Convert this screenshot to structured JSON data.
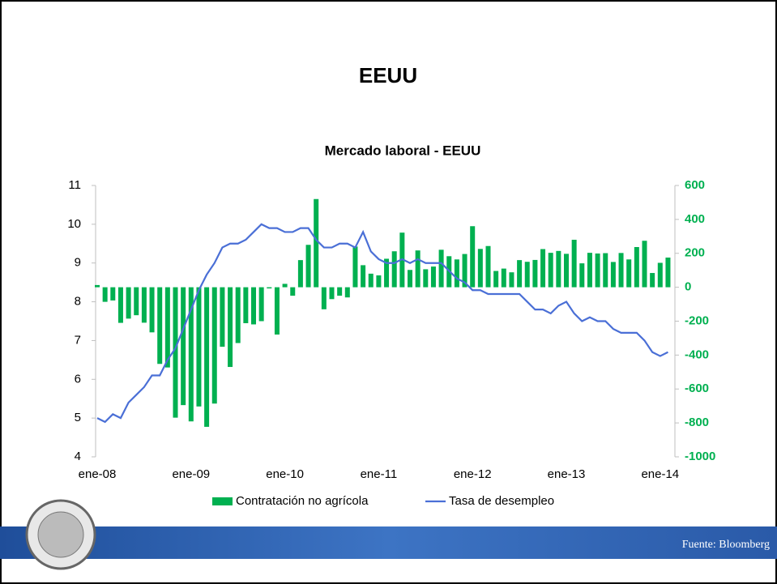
{
  "slide_title": "EEUU",
  "footer": "Fuente: Bloomberg",
  "chart_data": {
    "type": "bar-line",
    "title": "Mercado laboral - EEUU",
    "categories": [
      "ene-08",
      null,
      null,
      null,
      null,
      null,
      null,
      null,
      null,
      null,
      null,
      null,
      "ene-09",
      null,
      null,
      null,
      null,
      null,
      null,
      null,
      null,
      null,
      null,
      null,
      "ene-10",
      null,
      null,
      null,
      null,
      null,
      null,
      null,
      null,
      null,
      null,
      null,
      "ene-11",
      null,
      null,
      null,
      null,
      null,
      null,
      null,
      null,
      null,
      null,
      null,
      "ene-12",
      null,
      null,
      null,
      null,
      null,
      null,
      null,
      null,
      null,
      null,
      null,
      "ene-13",
      null,
      null,
      null,
      null,
      null,
      null,
      null,
      null,
      null,
      null,
      null,
      "ene-14",
      null
    ],
    "series": [
      {
        "name": "Contratación no agrícola",
        "color": "#00b050",
        "axis": "y2",
        "values": [
          13,
          -86,
          -78,
          -210,
          -185,
          -165,
          -209,
          -266,
          -452,
          -473,
          -769,
          -695,
          -791,
          -703,
          -823,
          -686,
          -351,
          -470,
          -329,
          -212,
          -219,
          -200,
          -7,
          -279,
          20,
          -50,
          160,
          250,
          520,
          -130,
          -70,
          -50,
          -60,
          240,
          130,
          80,
          70,
          168,
          212,
          322,
          102,
          217,
          106,
          122,
          221,
          183,
          164,
          196,
          360,
          226,
          243,
          96,
          110,
          88,
          160,
          150,
          161,
          225,
          203,
          214,
          197,
          280,
          141,
          203,
          199,
          201,
          149,
          202,
          164,
          237,
          274,
          84,
          144,
          175
        ]
      },
      {
        "name": "Tasa de desempleo",
        "color": "#4a6fd6",
        "axis": "y",
        "values": [
          5.0,
          4.9,
          5.1,
          5.0,
          5.4,
          5.6,
          5.8,
          6.1,
          6.1,
          6.5,
          6.8,
          7.3,
          7.8,
          8.3,
          8.7,
          9.0,
          9.4,
          9.5,
          9.5,
          9.6,
          9.8,
          10.0,
          9.9,
          9.9,
          9.8,
          9.8,
          9.9,
          9.9,
          9.6,
          9.4,
          9.4,
          9.5,
          9.5,
          9.4,
          9.8,
          9.3,
          9.1,
          9.0,
          9.0,
          9.1,
          9.0,
          9.1,
          9.0,
          9.0,
          9.0,
          8.8,
          8.6,
          8.5,
          8.3,
          8.3,
          8.2,
          8.2,
          8.2,
          8.2,
          8.2,
          8.0,
          7.8,
          7.8,
          7.7,
          7.9,
          8.0,
          7.7,
          7.5,
          7.6,
          7.5,
          7.5,
          7.3,
          7.2,
          7.2,
          7.2,
          7.0,
          6.7,
          6.6,
          6.7
        ]
      }
    ],
    "ylim": [
      4,
      11
    ],
    "yticks": [
      4,
      5,
      6,
      7,
      8,
      9,
      10,
      11
    ],
    "y2lim": [
      -1000,
      600
    ],
    "y2ticks": [
      -1000,
      -800,
      -600,
      -400,
      -200,
      0,
      200,
      400,
      600
    ]
  }
}
